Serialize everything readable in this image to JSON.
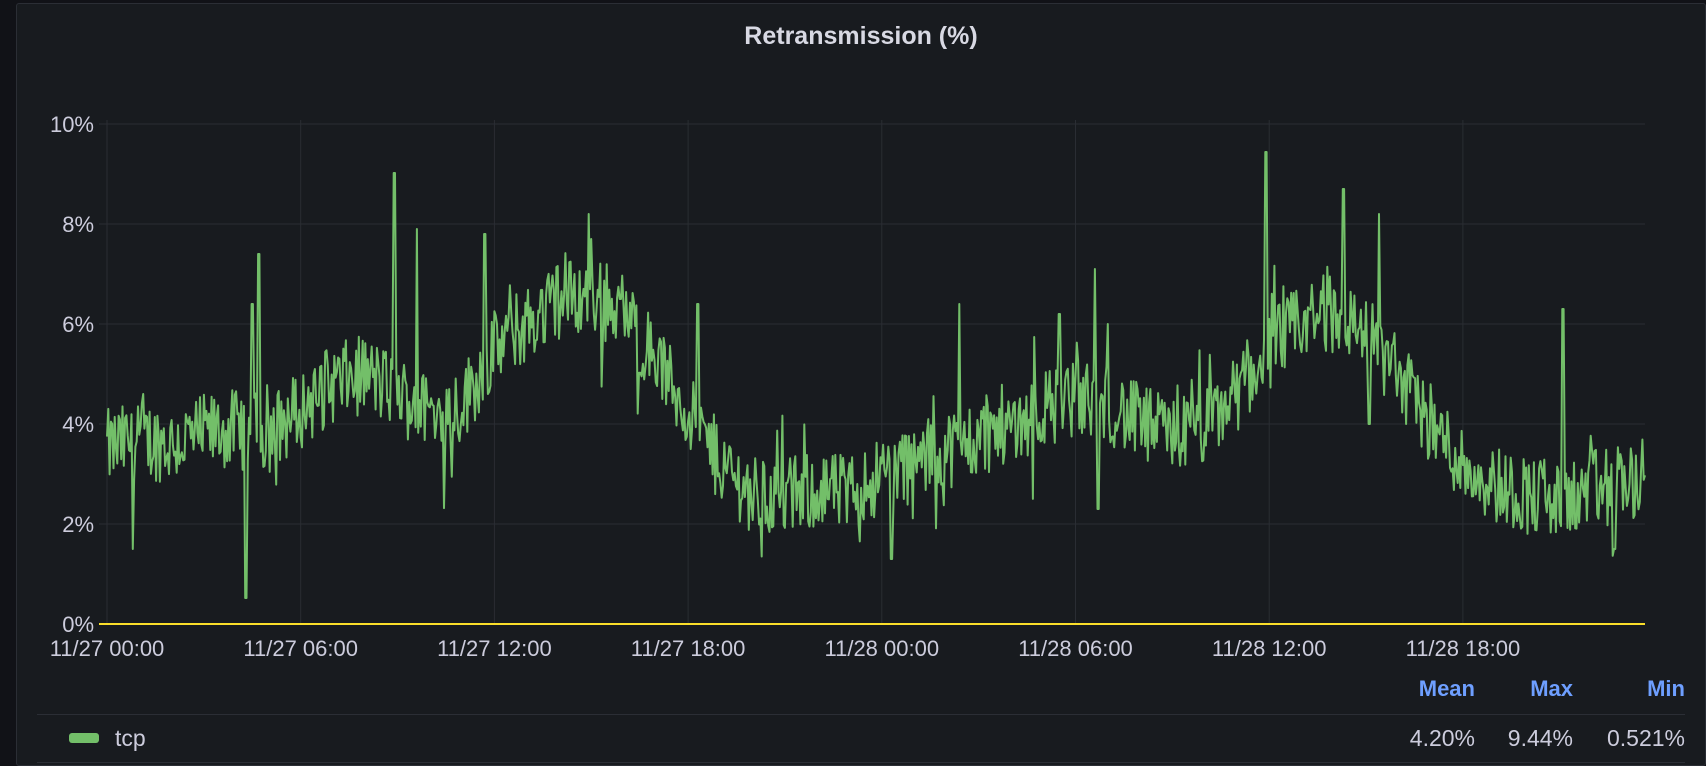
{
  "panel": {
    "title": "Retransmission (%)"
  },
  "chart_data": {
    "type": "line",
    "title": "Retransmission (%)",
    "x_range": [
      "11/27 00:00",
      "11/28 23:59"
    ],
    "x_ticks": [
      "11/27 00:00",
      "11/27 06:00",
      "11/27 12:00",
      "11/27 18:00",
      "11/28 00:00",
      "11/28 06:00",
      "11/28 12:00",
      "11/28 18:00"
    ],
    "ylim": [
      0,
      10
    ],
    "y_ticks": [
      "0%",
      "2%",
      "4%",
      "6%",
      "8%",
      "10%"
    ],
    "grid": true,
    "legend": "bottom",
    "series": [
      {
        "name": "tcp",
        "color": "#73bf69",
        "x_hours": [
          0,
          1,
          2,
          3,
          4,
          5,
          6,
          7,
          8,
          9,
          10,
          11,
          12,
          13,
          14,
          15,
          16,
          17,
          18,
          19,
          20,
          21,
          22,
          23,
          24,
          25,
          26,
          27,
          28,
          29,
          30,
          31,
          32,
          33,
          34,
          35,
          36,
          37,
          38,
          39,
          40,
          41,
          42,
          43,
          44,
          45,
          46,
          47
        ],
        "values": [
          3.5,
          3.7,
          3.6,
          3.8,
          3.9,
          3.8,
          4.3,
          4.8,
          5.0,
          4.6,
          4.2,
          4.4,
          5.5,
          6.0,
          6.5,
          6.6,
          6.2,
          5.3,
          4.2,
          3.2,
          2.6,
          2.5,
          2.7,
          2.6,
          3.0,
          3.2,
          3.5,
          3.7,
          4.0,
          4.3,
          4.5,
          4.4,
          4.0,
          3.8,
          3.9,
          4.6,
          5.5,
          6.0,
          6.3,
          5.8,
          5.0,
          4.0,
          3.2,
          2.8,
          2.6,
          2.4,
          2.7,
          2.9
        ],
        "spikes": [
          [
            0.8,
            1.5
          ],
          [
            4.3,
            0.52
          ],
          [
            4.5,
            6.4
          ],
          [
            4.7,
            7.4
          ],
          [
            8.9,
            9.02
          ],
          [
            9.6,
            7.9
          ],
          [
            11.7,
            7.8
          ],
          [
            15.0,
            7.7
          ],
          [
            15.9,
            6.5
          ],
          [
            18.3,
            6.4
          ],
          [
            26.4,
            6.4
          ],
          [
            29.5,
            6.2
          ],
          [
            30.6,
            7.1
          ],
          [
            35.9,
            9.44
          ],
          [
            38.3,
            8.7
          ],
          [
            39.4,
            8.2
          ],
          [
            39.1,
            4.0
          ],
          [
            30.7,
            2.3
          ],
          [
            24.3,
            1.3
          ],
          [
            46.7,
            1.5
          ],
          [
            45.1,
            6.3
          ]
        ]
      }
    ],
    "stats": {
      "Mean": "4.20%",
      "Max": "9.44%",
      "Min": "0.521%"
    },
    "threshold": {
      "value": 0,
      "color": "#fade2a"
    }
  },
  "legend": {
    "headers": [
      "Mean",
      "Max",
      "Min"
    ],
    "series_name": "tcp",
    "mean": "4.20%",
    "max": "9.44%",
    "min": "0.521%"
  }
}
